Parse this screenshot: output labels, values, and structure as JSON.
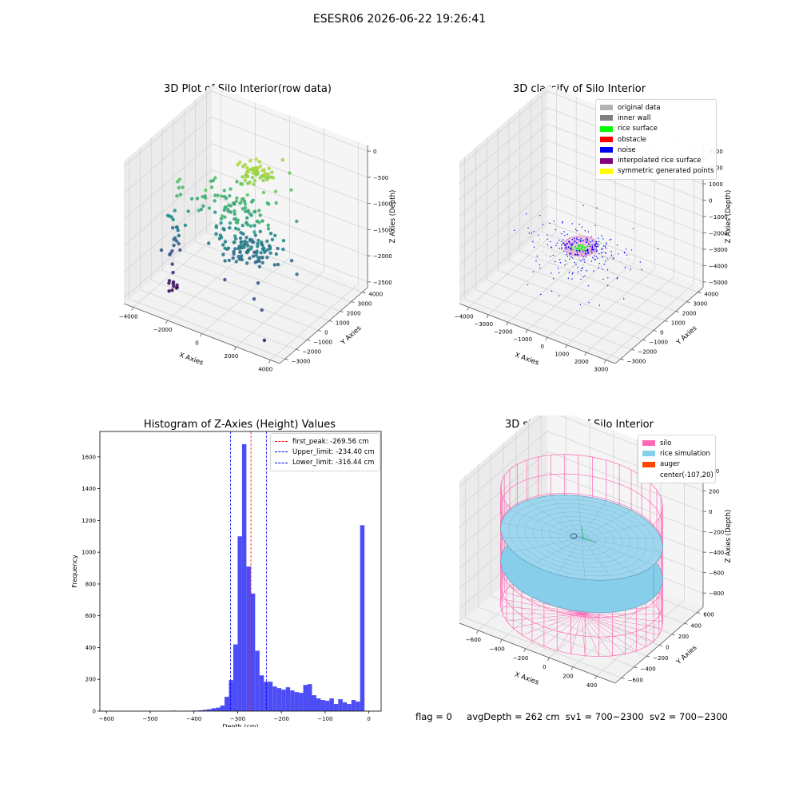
{
  "figure": {
    "suptitle": "ESESR06 2026-06-22 19:26:41",
    "footer": {
      "flag": "flag = 0",
      "avg_depth": "avgDepth = 262 cm",
      "sv1": "sv1 = 700~2300",
      "sv2": "sv2 = 700~2300"
    }
  },
  "chart_data": [
    {
      "type": "scatter",
      "projection": "3d",
      "title": "3D Plot of Silo Interior(row data)",
      "xlabel": "X Axies",
      "ylabel": "Y Axies",
      "zlabel": "Z Axies (Depth)",
      "x_ticks": [
        "−4000",
        "−2000",
        "0",
        "2000",
        "4000"
      ],
      "y_ticks": [
        "−3000",
        "−2000",
        "−1000",
        "0",
        "1000",
        "2000",
        "3000",
        "4000"
      ],
      "z_ticks": [
        "−2500",
        "−2000",
        "−1500",
        "−1000",
        "−500",
        "0"
      ],
      "xlim": [
        -4500,
        4500
      ],
      "ylim": [
        -3500,
        4500
      ],
      "zlim": [
        -2600,
        100
      ],
      "colormap": "viridis",
      "clusters": [
        {
          "center": [
            300,
            900,
            -300
          ],
          "spread": [
            500,
            350,
            60
          ],
          "count": 60
        },
        {
          "center": [
            -300,
            100,
            -900
          ],
          "spread": [
            1100,
            700,
            150
          ],
          "count": 90
        },
        {
          "center": [
            600,
            -200,
            -1500
          ],
          "spread": [
            900,
            600,
            150
          ],
          "count": 120
        },
        {
          "center": [
            -3300,
            -800,
            -1400
          ],
          "spread": [
            150,
            250,
            500
          ],
          "count": 28
        },
        {
          "center": [
            -3000,
            -1400,
            -2400
          ],
          "spread": [
            200,
            150,
            80
          ],
          "count": 10
        }
      ],
      "outliers": [
        [
          1800,
          1800,
          -600
        ],
        [
          2500,
          1200,
          -1000
        ],
        [
          2200,
          -2200,
          -1900
        ],
        [
          2900,
          -2600,
          -1950
        ],
        [
          3300,
          -3000,
          -2400
        ],
        [
          800,
          2600,
          -300
        ],
        [
          1200,
          2600,
          -500
        ]
      ]
    },
    {
      "type": "scatter",
      "projection": "3d",
      "title": "3D classify of Silo Interior",
      "xlabel": "X Axies",
      "ylabel": "Y Axies",
      "zlabel": "Z Axies (Depth)",
      "x_ticks": [
        "−4000",
        "−3000",
        "−2000",
        "−1000",
        "0",
        "1000",
        "2000",
        "3000"
      ],
      "y_ticks": [
        "−3000",
        "−2000",
        "−1000",
        "0",
        "1000",
        "2000",
        "3000",
        "4000"
      ],
      "z_ticks": [
        "−5000",
        "−4000",
        "−3000",
        "−2000",
        "−1000",
        "0",
        "1000",
        "2000",
        "3000"
      ],
      "xlim": [
        -4500,
        3800
      ],
      "ylim": [
        -3500,
        4500
      ],
      "zlim": [
        -5500,
        3500
      ],
      "legend": {
        "position": "upper-right",
        "items": [
          {
            "label": "original data",
            "color": "#b3b3b3"
          },
          {
            "label": "inner wall",
            "color": "#808080"
          },
          {
            "label": "rice surface",
            "color": "#00ff00"
          },
          {
            "label": "obstacle",
            "color": "#ff0000"
          },
          {
            "label": "noise",
            "color": "#0000ff"
          },
          {
            "label": "interpolated rice surface",
            "color": "#800080"
          },
          {
            "label": "symmetric generated points",
            "color": "#ffff00"
          }
        ]
      },
      "noise_cluster": {
        "center": [
          -100,
          0,
          -2200
        ],
        "spread": [
          1200,
          900,
          400
        ],
        "count": 160
      },
      "rice_ring": {
        "center": [
          -107,
          20,
          -2000
        ],
        "radius": 700
      }
    },
    {
      "type": "bar",
      "title": "Histogram of Z-Axies (Height) Values",
      "xlabel": "Depth (cm)",
      "ylabel": "Frequency",
      "xlim": [
        -615,
        28
      ],
      "ylim": [
        0,
        1760
      ],
      "x_ticks": [
        -600,
        -500,
        -400,
        -300,
        -200,
        -100,
        0
      ],
      "y_ticks": [
        0,
        200,
        400,
        600,
        800,
        1000,
        1200,
        1400,
        1600
      ],
      "bin_width": 10,
      "bars": [
        {
          "x": -445,
          "y": 3
        },
        {
          "x": -405,
          "y": 2
        },
        {
          "x": -395,
          "y": 3
        },
        {
          "x": -385,
          "y": 5
        },
        {
          "x": -375,
          "y": 8
        },
        {
          "x": -365,
          "y": 12
        },
        {
          "x": -355,
          "y": 18
        },
        {
          "x": -345,
          "y": 22
        },
        {
          "x": -335,
          "y": 35
        },
        {
          "x": -325,
          "y": 90
        },
        {
          "x": -315,
          "y": 195
        },
        {
          "x": -305,
          "y": 420
        },
        {
          "x": -295,
          "y": 1100
        },
        {
          "x": -285,
          "y": 1680
        },
        {
          "x": -275,
          "y": 910
        },
        {
          "x": -265,
          "y": 740
        },
        {
          "x": -255,
          "y": 380
        },
        {
          "x": -245,
          "y": 225
        },
        {
          "x": -235,
          "y": 185
        },
        {
          "x": -225,
          "y": 185
        },
        {
          "x": -215,
          "y": 155
        },
        {
          "x": -205,
          "y": 145
        },
        {
          "x": -195,
          "y": 135
        },
        {
          "x": -185,
          "y": 150
        },
        {
          "x": -175,
          "y": 130
        },
        {
          "x": -165,
          "y": 120
        },
        {
          "x": -155,
          "y": 115
        },
        {
          "x": -145,
          "y": 165
        },
        {
          "x": -135,
          "y": 170
        },
        {
          "x": -125,
          "y": 100
        },
        {
          "x": -115,
          "y": 80
        },
        {
          "x": -105,
          "y": 70
        },
        {
          "x": -95,
          "y": 65
        },
        {
          "x": -85,
          "y": 80
        },
        {
          "x": -75,
          "y": 45
        },
        {
          "x": -65,
          "y": 75
        },
        {
          "x": -55,
          "y": 55
        },
        {
          "x": -45,
          "y": 45
        },
        {
          "x": -35,
          "y": 70
        },
        {
          "x": -25,
          "y": 60
        },
        {
          "x": -15,
          "y": 1170
        }
      ],
      "bar_color": "#4d4df5",
      "vlines": [
        {
          "x": -269.56,
          "color": "#ff0000",
          "label": "first_peak: -269.56 cm"
        },
        {
          "x": -234.4,
          "color": "#0000ff",
          "label": "Upper_limit: -234.40 cm"
        },
        {
          "x": -316.44,
          "color": "#0000ff",
          "label": "Lower_limit: -316.44 cm"
        }
      ],
      "legend": {
        "position": "upper-right"
      }
    },
    {
      "type": "surface",
      "projection": "3d",
      "title": "3D simulation of Silo Interior",
      "xlabel": "X Axies",
      "ylabel": "Y Axies",
      "zlabel": "Z Axies (Depth)",
      "x_ticks": [
        "−600",
        "−400",
        "−200",
        "0",
        "200",
        "400"
      ],
      "y_ticks": [
        "−600",
        "−400",
        "−200",
        "0",
        "200",
        "400",
        "600"
      ],
      "z_ticks": [
        "−800",
        "−600",
        "−400",
        "−200",
        "0",
        "200",
        "400"
      ],
      "xlim": [
        -750,
        550
      ],
      "ylim": [
        -700,
        700
      ],
      "zlim": [
        -950,
        450
      ],
      "legend": {
        "position": "upper-right",
        "items": [
          {
            "label": "silo",
            "color": "#ff69b4"
          },
          {
            "label": "rice simulation",
            "color": "#87ceeb"
          },
          {
            "label": "auger",
            "color": "#ff4500"
          },
          {
            "label": "center(-107,20)",
            "color": ""
          }
        ]
      },
      "silo": {
        "radius": 600,
        "z_top": 200,
        "z_bottom": -950
      },
      "rice_surface_z": -262,
      "auger_center": [
        -107,
        20
      ]
    }
  ]
}
